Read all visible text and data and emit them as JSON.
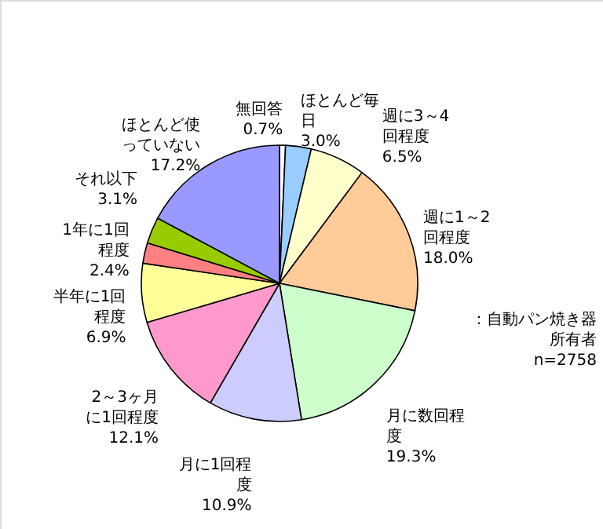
{
  "chart_data": {
    "type": "pie",
    "categories": [
      "無回答",
      "ほとんど毎日",
      "週に3～4回程度",
      "週に1～2回程度",
      "月に数回程度",
      "月に1回程度",
      "2～3ヶ月に1回程度",
      "半年に1回程度",
      "1年に1回程度",
      "それ以下",
      "ほとんど使っていない"
    ],
    "values": [
      0.7,
      3.0,
      6.5,
      18.0,
      19.3,
      10.9,
      12.1,
      6.9,
      2.4,
      3.1,
      17.2
    ],
    "value_labels": [
      "0.7%",
      "3.0%",
      "6.5%",
      "18.0%",
      "19.3%",
      "10.9%",
      "12.1%",
      "6.9%",
      "2.4%",
      "3.1%",
      "17.2%"
    ],
    "colors": [
      "#ffffff",
      "#99ccff",
      "#ffffcc",
      "#ffcc99",
      "#ccffcc",
      "#ccccff",
      "#ff99cc",
      "#ffff99",
      "#ff8080",
      "#99cc00",
      "#9999ff"
    ],
    "annotations": [
      "：自動パン焼き器所有者 n=2758"
    ]
  }
}
